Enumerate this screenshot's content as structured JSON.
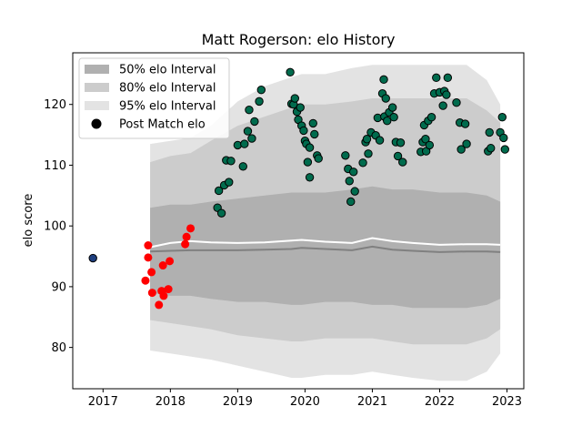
{
  "chart_data": {
    "type": "scatter",
    "title": "Matt Rogerson: elo History",
    "xlabel": "",
    "ylabel": "elo score",
    "xlim": [
      2016.55,
      2023.25
    ],
    "ylim": [
      73.2,
      128.5
    ],
    "x_ticks": [
      2017,
      2018,
      2019,
      2020,
      2021,
      2022,
      2023
    ],
    "y_ticks": [
      80,
      90,
      100,
      110,
      120
    ],
    "grid": false,
    "legend_position": "top-left",
    "legend": [
      {
        "label": "50% elo Interval",
        "color": "#b0b0b0"
      },
      {
        "label": "80% elo Interval",
        "color": "#cccccc"
      },
      {
        "label": "95% elo Interval",
        "color": "#e3e3e3"
      },
      {
        "label": "Post Match elo",
        "color": "#000000"
      }
    ],
    "colors": {
      "band95": "#e3e3e3",
      "band80": "#cccccc",
      "band50": "#b0b0b0",
      "median_line": "#808080",
      "mean_line": "#ffffff",
      "win_point": "#006b4d",
      "loss_point": "#ff0000",
      "initial_point": "#1f3f7f"
    },
    "intervals": {
      "x": [
        2017.7,
        2018.0,
        2018.3,
        2018.6,
        2019.0,
        2019.4,
        2019.8,
        2019.95,
        2020.3,
        2020.7,
        2021.0,
        2021.3,
        2021.6,
        2022.0,
        2022.4,
        2022.7,
        2022.9
      ],
      "p95_upper": [
        113.5,
        114.0,
        114.5,
        116.5,
        120.5,
        123.0,
        124.5,
        125.0,
        125.0,
        126.0,
        126.5,
        126.5,
        126.5,
        126.5,
        126.5,
        124.0,
        120.0
      ],
      "p95_lower": [
        79.5,
        79.0,
        78.5,
        78.0,
        77.0,
        76.0,
        75.0,
        75.0,
        75.5,
        75.5,
        76.0,
        75.5,
        75.0,
        74.5,
        74.5,
        76.0,
        79.0
      ],
      "p80_upper": [
        110.5,
        111.5,
        112.0,
        114.0,
        116.5,
        118.0,
        119.5,
        120.0,
        120.0,
        120.5,
        121.0,
        121.0,
        121.0,
        121.0,
        121.0,
        119.0,
        117.0
      ],
      "p80_lower": [
        84.5,
        84.0,
        83.5,
        83.0,
        82.0,
        81.5,
        81.0,
        81.0,
        81.5,
        81.5,
        81.5,
        81.0,
        80.5,
        80.5,
        80.5,
        81.5,
        83.0
      ],
      "p50_upper": [
        103.0,
        103.5,
        103.5,
        104.0,
        104.5,
        105.0,
        105.5,
        105.5,
        105.5,
        106.0,
        106.5,
        106.0,
        106.0,
        105.5,
        105.5,
        105.0,
        104.0
      ],
      "p50_lower": [
        89.0,
        88.5,
        88.5,
        88.0,
        87.5,
        87.5,
        87.0,
        87.0,
        87.5,
        87.5,
        87.0,
        87.0,
        86.5,
        86.5,
        86.5,
        87.0,
        88.0
      ],
      "median": [
        95.8,
        95.9,
        96.0,
        96.0,
        96.0,
        96.1,
        96.2,
        96.4,
        96.2,
        96.0,
        96.6,
        96.1,
        95.9,
        95.7,
        95.8,
        95.8,
        95.7
      ],
      "mean": [
        96.5,
        97.2,
        97.5,
        97.3,
        97.2,
        97.3,
        97.6,
        97.7,
        97.4,
        97.2,
        98.0,
        97.5,
        97.2,
        96.9,
        97.0,
        97.0,
        96.9
      ]
    },
    "points": {
      "initial": [
        [
          2016.85,
          94.7
        ]
      ],
      "losses": [
        [
          2017.67,
          96.8
        ],
        [
          2017.67,
          94.8
        ],
        [
          2017.63,
          91.0
        ],
        [
          2017.72,
          92.4
        ],
        [
          2017.73,
          89.0
        ],
        [
          2017.83,
          87.0
        ],
        [
          2017.87,
          89.3
        ],
        [
          2017.89,
          93.5
        ],
        [
          2017.9,
          88.5
        ],
        [
          2017.97,
          89.6
        ],
        [
          2017.99,
          94.2
        ],
        [
          2018.22,
          97.0
        ],
        [
          2018.24,
          98.2
        ],
        [
          2018.3,
          99.6
        ]
      ],
      "wins": [
        [
          2018.7,
          103.0
        ],
        [
          2018.72,
          105.8
        ],
        [
          2018.76,
          102.1
        ],
        [
          2018.8,
          106.7
        ],
        [
          2018.83,
          110.8
        ],
        [
          2018.87,
          107.2
        ],
        [
          2018.9,
          110.7
        ],
        [
          2019.0,
          113.3
        ],
        [
          2019.08,
          109.8
        ],
        [
          2019.1,
          113.5
        ],
        [
          2019.15,
          115.6
        ],
        [
          2019.17,
          119.1
        ],
        [
          2019.21,
          114.4
        ],
        [
          2019.25,
          117.2
        ],
        [
          2019.32,
          120.5
        ],
        [
          2019.35,
          122.4
        ],
        [
          2019.78,
          125.3
        ],
        [
          2019.8,
          120.1
        ],
        [
          2019.83,
          120.0
        ],
        [
          2019.85,
          121.0
        ],
        [
          2019.88,
          118.8
        ],
        [
          2019.9,
          117.5
        ],
        [
          2019.93,
          119.5
        ],
        [
          2019.95,
          116.5
        ],
        [
          2019.98,
          115.7
        ],
        [
          2020.0,
          114.0
        ],
        [
          2020.02,
          113.5
        ],
        [
          2020.04,
          110.5
        ],
        [
          2020.07,
          112.9
        ],
        [
          2020.07,
          108.0
        ],
        [
          2020.12,
          116.9
        ],
        [
          2020.14,
          115.1
        ],
        [
          2020.18,
          111.6
        ],
        [
          2020.2,
          111.1
        ],
        [
          2020.6,
          111.6
        ],
        [
          2020.64,
          109.4
        ],
        [
          2020.66,
          107.4
        ],
        [
          2020.68,
          104.0
        ],
        [
          2020.72,
          108.9
        ],
        [
          2020.74,
          105.7
        ],
        [
          2020.86,
          110.4
        ],
        [
          2020.9,
          113.8
        ],
        [
          2020.92,
          114.3
        ],
        [
          2020.94,
          111.9
        ],
        [
          2020.98,
          115.4
        ],
        [
          2021.05,
          114.9
        ],
        [
          2021.08,
          117.8
        ],
        [
          2021.11,
          114.1
        ],
        [
          2021.15,
          121.8
        ],
        [
          2021.17,
          124.1
        ],
        [
          2021.18,
          118.0
        ],
        [
          2021.2,
          121.0
        ],
        [
          2021.22,
          117.3
        ],
        [
          2021.25,
          118.7
        ],
        [
          2021.3,
          119.5
        ],
        [
          2021.32,
          117.9
        ],
        [
          2021.35,
          113.8
        ],
        [
          2021.38,
          111.5
        ],
        [
          2021.42,
          113.7
        ],
        [
          2021.45,
          110.5
        ],
        [
          2021.72,
          112.2
        ],
        [
          2021.75,
          113.8
        ],
        [
          2021.77,
          116.6
        ],
        [
          2021.79,
          114.3
        ],
        [
          2021.8,
          112.3
        ],
        [
          2021.83,
          117.3
        ],
        [
          2021.85,
          113.3
        ],
        [
          2021.88,
          117.9
        ],
        [
          2021.92,
          121.8
        ],
        [
          2021.95,
          124.4
        ],
        [
          2022.0,
          122.0
        ],
        [
          2022.05,
          119.8
        ],
        [
          2022.07,
          122.2
        ],
        [
          2022.1,
          121.6
        ],
        [
          2022.12,
          124.4
        ],
        [
          2022.25,
          120.3
        ],
        [
          2022.3,
          117.0
        ],
        [
          2022.32,
          112.6
        ],
        [
          2022.38,
          116.8
        ],
        [
          2022.4,
          113.5
        ],
        [
          2022.72,
          112.3
        ],
        [
          2022.74,
          115.4
        ],
        [
          2022.76,
          112.8
        ],
        [
          2022.9,
          115.4
        ],
        [
          2022.93,
          117.9
        ],
        [
          2022.95,
          114.5
        ],
        [
          2022.97,
          112.6
        ]
      ]
    }
  }
}
